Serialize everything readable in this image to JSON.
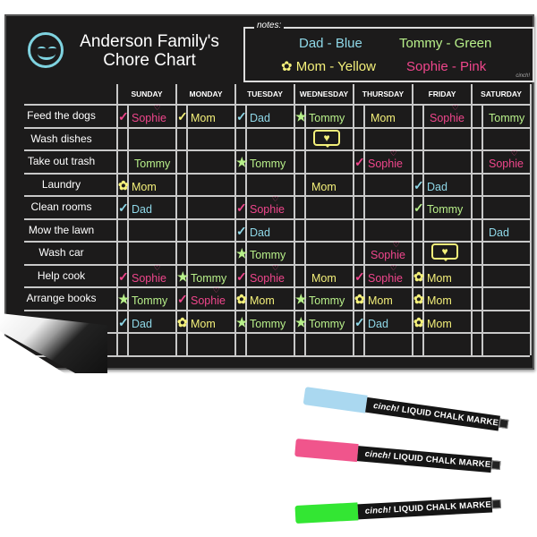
{
  "header": {
    "title_line1": "Anderson Family's",
    "title_line2": "Chore Chart",
    "icon": "smiley-face-icon"
  },
  "notes": {
    "label": "notes:",
    "items": [
      {
        "text": "Dad - Blue",
        "color": "#8fd8e8"
      },
      {
        "text": "Tommy - Green",
        "color": "#b8f08a"
      },
      {
        "text": "Mom - Yellow",
        "color": "#f4f07a",
        "mark": "flower"
      },
      {
        "text": "Sophie - Pink",
        "color": "#f0468c",
        "mark": "heart"
      }
    ],
    "brand": "cinch!"
  },
  "colors": {
    "Dad": "#8fd8e8",
    "Tommy": "#b8f08a",
    "Mom": "#f4f07a",
    "Sophie": "#f0468c"
  },
  "days": [
    "SUNDAY",
    "MONDAY",
    "TUESDAY",
    "WEDNESDAY",
    "THURSDAY",
    "FRIDAY",
    "SATURDAY"
  ],
  "rows": [
    {
      "label": "Feed the dogs",
      "cells": [
        {
          "name": "Sophie",
          "mark": "check"
        },
        {
          "name": "Mom",
          "mark": "check"
        },
        {
          "name": "Dad",
          "mark": "check"
        },
        {
          "name": "Tommy",
          "mark": "star"
        },
        {
          "name": "Mom"
        },
        {
          "name": "Sophie"
        },
        {
          "name": "Tommy"
        }
      ]
    },
    {
      "label": "Wash dishes",
      "cells": [
        null,
        null,
        null,
        {
          "mark": "bubble"
        },
        null,
        null,
        null
      ]
    },
    {
      "label": "Take out trash",
      "cells": [
        {
          "name": "Tommy"
        },
        null,
        {
          "name": "Tommy",
          "mark": "star"
        },
        null,
        {
          "name": "Sophie",
          "mark": "check"
        },
        null,
        {
          "name": "Sophie"
        }
      ]
    },
    {
      "label": "Laundry",
      "cells": [
        {
          "name": "Mom",
          "mark": "flower"
        },
        null,
        null,
        {
          "name": "Mom"
        },
        null,
        {
          "name": "Dad",
          "mark": "check"
        },
        null
      ]
    },
    {
      "label": "Clean rooms",
      "cells": [
        {
          "name": "Dad",
          "mark": "check"
        },
        null,
        {
          "name": "Sophie",
          "mark": "check"
        },
        null,
        null,
        {
          "name": "Tommy",
          "mark": "check"
        },
        null
      ]
    },
    {
      "label": "Mow the lawn",
      "cells": [
        null,
        null,
        {
          "name": "Dad",
          "mark": "check"
        },
        null,
        null,
        null,
        {
          "name": "Dad"
        }
      ]
    },
    {
      "label": "Wash car",
      "cells": [
        null,
        null,
        {
          "name": "Tommy",
          "mark": "star"
        },
        null,
        {
          "name": "Sophie"
        },
        {
          "mark": "bubble"
        },
        null
      ]
    },
    {
      "label": "Help cook",
      "cells": [
        {
          "name": "Sophie",
          "mark": "check"
        },
        {
          "name": "Tommy",
          "mark": "star"
        },
        {
          "name": "Sophie",
          "mark": "check"
        },
        {
          "name": "Mom"
        },
        {
          "name": "Sophie",
          "mark": "check"
        },
        {
          "name": "Mom",
          "mark": "flower"
        },
        null
      ]
    },
    {
      "label": "Arrange books",
      "cells": [
        {
          "name": "Tommy",
          "mark": "star"
        },
        {
          "name": "Sophie",
          "mark": "check"
        },
        {
          "name": "Mom",
          "mark": "flower"
        },
        {
          "name": "Tommy",
          "mark": "star"
        },
        {
          "name": "Mom",
          "mark": "flower"
        },
        {
          "name": "Mom",
          "mark": "flower"
        },
        null
      ]
    },
    {
      "label": "",
      "cells": [
        {
          "name": "Dad",
          "mark": "check"
        },
        {
          "name": "Mom",
          "mark": "flower"
        },
        {
          "name": "Tommy",
          "mark": "star"
        },
        {
          "name": "Tommy",
          "mark": "star"
        },
        {
          "name": "Dad",
          "mark": "check"
        },
        {
          "name": "Mom",
          "mark": "flower"
        },
        null
      ]
    },
    {
      "label": "",
      "cells": [
        null,
        null,
        null,
        null,
        null,
        null,
        null
      ]
    }
  ],
  "markers": [
    {
      "color": "#aad8f0",
      "brand": "cinch!",
      "label": "LIQUID CHALK MARKER"
    },
    {
      "color": "#f0558c",
      "brand": "cinch!",
      "label": "LIQUID CHALK MARKER"
    },
    {
      "color": "#33e633",
      "brand": "cinch!",
      "label": "LIQUID CHALK MARKER"
    }
  ]
}
